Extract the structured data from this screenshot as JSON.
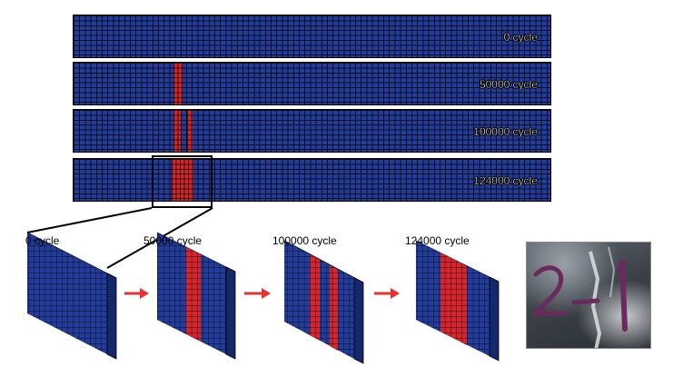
{
  "strips": [
    {
      "label": "0 cycle"
    },
    {
      "label": "50000 cycle"
    },
    {
      "label": "100000 cycle"
    },
    {
      "label": "124000 cycle"
    }
  ],
  "meshes": [
    {
      "label": "0 cycle"
    },
    {
      "label": "50000 cycle"
    },
    {
      "label": "100000 cycle"
    },
    {
      "label": "124000 cycle"
    }
  ],
  "photo": {
    "handwriting": "2-1"
  },
  "colors": {
    "intact_element": "#233c9a",
    "damaged_element": "#d4262c",
    "arrow": "#e8312f",
    "mesh_line": "#000000"
  }
}
